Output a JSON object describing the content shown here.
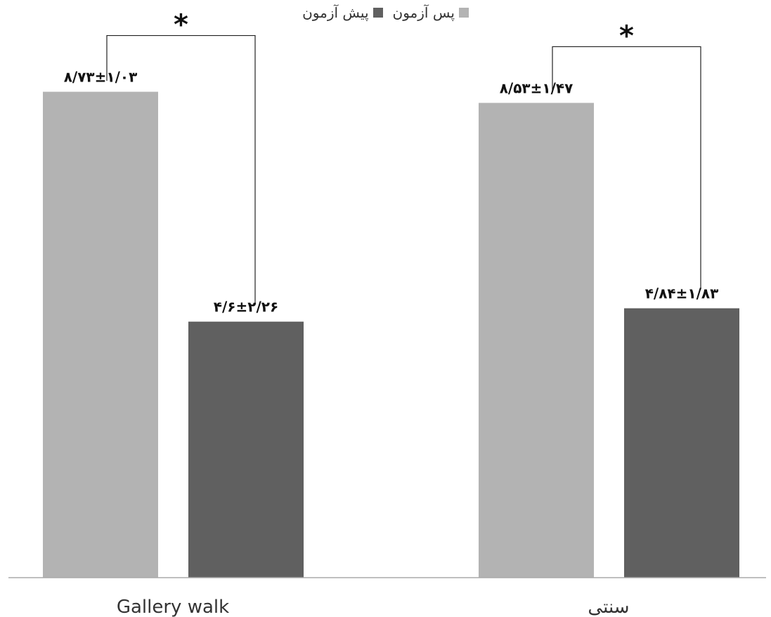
{
  "chart_data": {
    "type": "bar",
    "categories": [
      "Gallery walk",
      "سنتی"
    ],
    "series": [
      {
        "name": "پس آزمون",
        "values": [
          8.73,
          8.53
        ],
        "color": "#b3b3b3"
      },
      {
        "name": "پیش آزمون",
        "values": [
          4.6,
          4.84
        ],
        "color": "#606060"
      }
    ],
    "data_labels": [
      [
        "۸/۷۳±۱/۰۳",
        "۸/۵۳±۱/۴۷"
      ],
      [
        "۴/۶±۲/۲۶",
        "۴/۸۴±۱/۸۳"
      ]
    ],
    "significance_markers": [
      "*",
      "*"
    ],
    "title": "",
    "xlabel": "",
    "ylabel": "",
    "ylim": [
      0,
      10
    ],
    "grid": false,
    "legend_position": "top-center",
    "axis_color": "#aaaaaa"
  }
}
